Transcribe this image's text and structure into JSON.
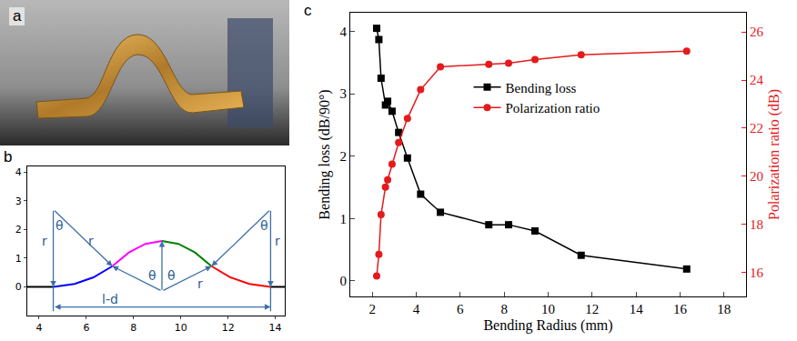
{
  "panel_labels": [
    "a",
    "b",
    "c"
  ],
  "diagram": {
    "xlim": [
      3.5,
      14.4
    ],
    "ylim": [
      -1,
      4.2
    ],
    "xticks": [
      4,
      6,
      8,
      10,
      12,
      14
    ],
    "yticks": [
      0,
      1,
      2,
      3,
      4
    ],
    "curves": [
      {
        "color": "#000000",
        "x": [
          3.5,
          4.6
        ],
        "y": [
          0,
          0
        ]
      },
      {
        "color": "#0000ff",
        "x": [
          4.6,
          5.5,
          6.3,
          7.1
        ],
        "y": [
          0,
          0.1,
          0.33,
          0.72
        ]
      },
      {
        "color": "#ff00ff",
        "x": [
          7.1,
          7.8,
          8.5,
          9.2
        ],
        "y": [
          0.72,
          1.2,
          1.5,
          1.6
        ]
      },
      {
        "color": "#008000",
        "x": [
          9.2,
          9.9,
          10.6,
          11.3
        ],
        "y": [
          1.6,
          1.5,
          1.2,
          0.72
        ]
      },
      {
        "color": "#ff0000",
        "x": [
          11.3,
          12.1,
          12.9,
          13.8
        ],
        "y": [
          0.72,
          0.33,
          0.1,
          0
        ]
      },
      {
        "color": "#000000",
        "x": [
          13.8,
          14.4
        ],
        "y": [
          0,
          0
        ]
      }
    ],
    "guides": [
      {
        "x": [
          4.6,
          4.6
        ],
        "y": [
          2.7,
          0
        ],
        "arrow": "end"
      },
      {
        "x": [
          4.6,
          7.1
        ],
        "y": [
          2.7,
          0.72
        ],
        "arrow": "end"
      },
      {
        "x": [
          9.2,
          7.1
        ],
        "y": [
          -0.15,
          0.72
        ],
        "arrow": "end"
      },
      {
        "x": [
          9.2,
          9.2
        ],
        "y": [
          -0.15,
          1.6
        ],
        "arrow": "end"
      },
      {
        "x": [
          9.2,
          11.3
        ],
        "y": [
          -0.15,
          0.72
        ],
        "arrow": "end"
      },
      {
        "x": [
          13.8,
          13.8
        ],
        "y": [
          2.7,
          0
        ],
        "arrow": "end"
      },
      {
        "x": [
          13.8,
          11.3
        ],
        "y": [
          2.7,
          0.72
        ],
        "arrow": "end"
      },
      {
        "x": [
          4.6,
          4.6
        ],
        "y": [
          0,
          -0.85
        ],
        "arrow": "none"
      },
      {
        "x": [
          13.8,
          13.8
        ],
        "y": [
          0,
          -0.85
        ],
        "arrow": "none"
      },
      {
        "x": [
          4.6,
          13.8
        ],
        "y": [
          -0.7,
          -0.7
        ],
        "arrow": "both"
      }
    ],
    "labels": [
      {
        "text": "r",
        "x": 4.25,
        "y": 1.6
      },
      {
        "text": "θ",
        "x": 4.87,
        "y": 2.15
      },
      {
        "text": "r",
        "x": 6.2,
        "y": 1.6
      },
      {
        "text": "θ",
        "x": 8.8,
        "y": 0.4
      },
      {
        "text": "θ",
        "x": 9.6,
        "y": 0.4
      },
      {
        "text": "r",
        "x": 10.8,
        "y": 0.1
      },
      {
        "text": "θ",
        "x": 13.53,
        "y": 2.15
      },
      {
        "text": "r",
        "x": 14.1,
        "y": 1.6
      },
      {
        "text": "l-d",
        "x": 7.0,
        "y": -0.42
      }
    ]
  },
  "chart_data": {
    "type": "line",
    "x_label": "Bending Radius (mm)",
    "y_label": "Bending loss (dB/90°)",
    "y2_label": "Polarization ratio (dB)",
    "x": [
      2.2,
      2.3,
      2.4,
      2.6,
      2.7,
      2.9,
      3.2,
      3.6,
      4.2,
      5.1,
      7.3,
      8.2,
      9.4,
      11.5,
      16.3
    ],
    "series": [
      {
        "name": "Bending loss",
        "color": "#000000",
        "marker": "square",
        "values": [
          4.05,
          3.87,
          3.25,
          2.82,
          2.88,
          2.72,
          2.38,
          1.97,
          1.39,
          1.1,
          0.9,
          0.9,
          0.8,
          0.41,
          0.19
        ]
      },
      {
        "name": "Polarization ratio",
        "color": "#e41a1c",
        "marker": "circle",
        "axis": "y2",
        "values": [
          15.85,
          16.75,
          18.4,
          19.55,
          19.85,
          20.5,
          21.4,
          22.4,
          23.6,
          24.55,
          24.65,
          24.7,
          24.85,
          25.05,
          25.2
        ]
      }
    ],
    "xlim": [
      1,
      19
    ],
    "xticks": [
      2,
      4,
      6,
      8,
      10,
      12,
      14,
      16,
      18
    ],
    "ylim": [
      -0.25,
      4.3
    ],
    "yticks": [
      0,
      1,
      2,
      3,
      4
    ],
    "y2lim": [
      15,
      26.8
    ],
    "y2ticks": [
      16,
      18,
      20,
      22,
      24,
      26
    ],
    "grid": false,
    "legend": "top"
  }
}
